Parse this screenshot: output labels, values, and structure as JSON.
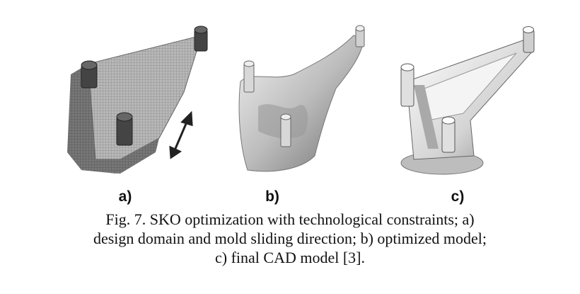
{
  "figure": {
    "panels": [
      {
        "label": "a)",
        "depicts": "design domain mesh with mold sliding direction arrow"
      },
      {
        "label": "b)",
        "depicts": "optimized model"
      },
      {
        "label": "c)",
        "depicts": "final CAD model"
      }
    ],
    "caption_lines": [
      "Fig. 7. SKO optimization with technological constraints; a)",
      "design domain and mold sliding direction; b) optimized model;",
      "c) final CAD model [3]."
    ]
  }
}
